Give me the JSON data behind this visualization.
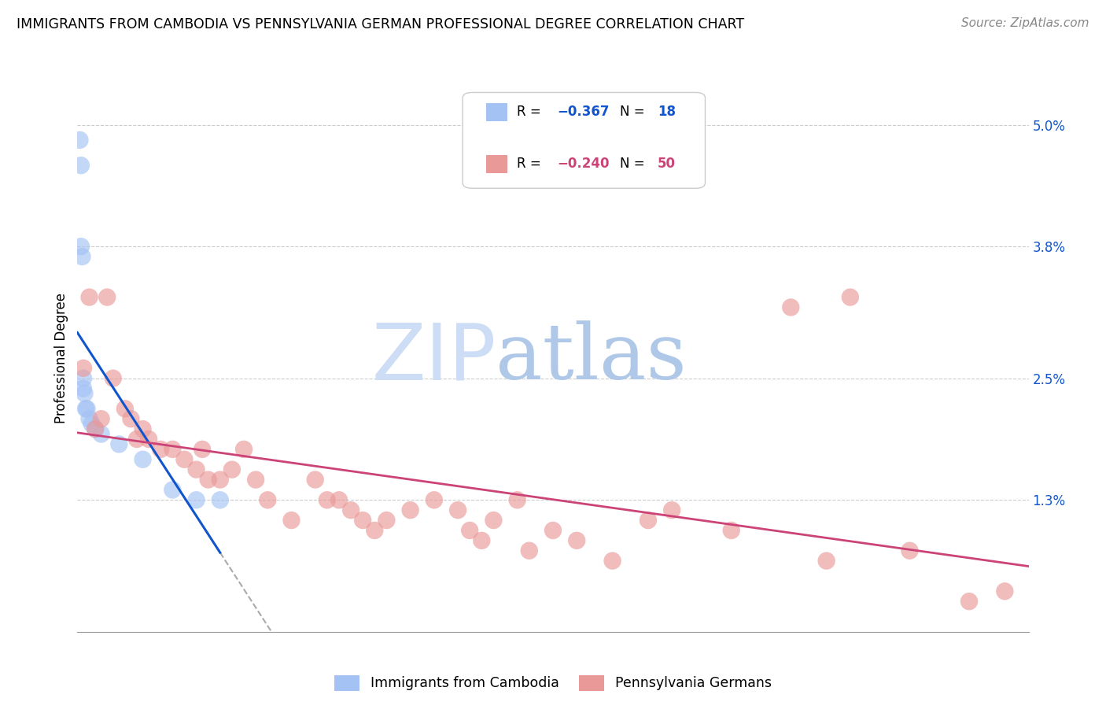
{
  "title": "IMMIGRANTS FROM CAMBODIA VS PENNSYLVANIA GERMAN PROFESSIONAL DEGREE CORRELATION CHART",
  "source": "Source: ZipAtlas.com",
  "ylabel": "Professional Degree",
  "xlim": [
    0.0,
    80.0
  ],
  "ylim": [
    0.0,
    5.4
  ],
  "yplot_max": 5.0,
  "blue_color": "#a4c2f4",
  "pink_color": "#ea9999",
  "blue_line_color": "#1155cc",
  "pink_line_color": "#cc4477",
  "blue_scatter_x": [
    0.2,
    0.3,
    0.3,
    0.4,
    0.5,
    0.5,
    0.6,
    0.7,
    0.8,
    1.0,
    1.2,
    1.5,
    2.0,
    3.5,
    5.5,
    8.0,
    10.0,
    12.0
  ],
  "blue_scatter_y": [
    4.85,
    4.6,
    3.8,
    3.7,
    2.5,
    2.4,
    2.35,
    2.2,
    2.2,
    2.1,
    2.05,
    2.0,
    1.95,
    1.85,
    1.7,
    1.4,
    1.3,
    1.3
  ],
  "pink_scatter_x": [
    0.5,
    1.0,
    1.5,
    2.0,
    2.5,
    3.0,
    4.0,
    4.5,
    5.0,
    5.5,
    6.0,
    7.0,
    8.0,
    9.0,
    10.0,
    10.5,
    11.0,
    12.0,
    13.0,
    14.0,
    15.0,
    16.0,
    18.0,
    20.0,
    21.0,
    22.0,
    23.0,
    24.0,
    25.0,
    26.0,
    28.0,
    30.0,
    32.0,
    33.0,
    34.0,
    35.0,
    37.0,
    38.0,
    40.0,
    42.0,
    45.0,
    48.0,
    50.0,
    55.0,
    60.0,
    63.0,
    65.0,
    70.0,
    75.0,
    78.0
  ],
  "pink_scatter_y": [
    2.6,
    3.3,
    2.0,
    2.1,
    3.3,
    2.5,
    2.2,
    2.1,
    1.9,
    2.0,
    1.9,
    1.8,
    1.8,
    1.7,
    1.6,
    1.8,
    1.5,
    1.5,
    1.6,
    1.8,
    1.5,
    1.3,
    1.1,
    1.5,
    1.3,
    1.3,
    1.2,
    1.1,
    1.0,
    1.1,
    1.2,
    1.3,
    1.2,
    1.0,
    0.9,
    1.1,
    1.3,
    0.8,
    1.0,
    0.9,
    0.7,
    1.1,
    1.2,
    1.0,
    3.2,
    0.7,
    3.3,
    0.8,
    0.3,
    0.4
  ],
  "ytick_positions": [
    1.3,
    2.5,
    3.8,
    5.0
  ],
  "ytick_labels": [
    "1.3%",
    "2.5%",
    "3.8%",
    "5.0%"
  ],
  "watermark_zip": "ZIP",
  "watermark_atlas": "atlas"
}
